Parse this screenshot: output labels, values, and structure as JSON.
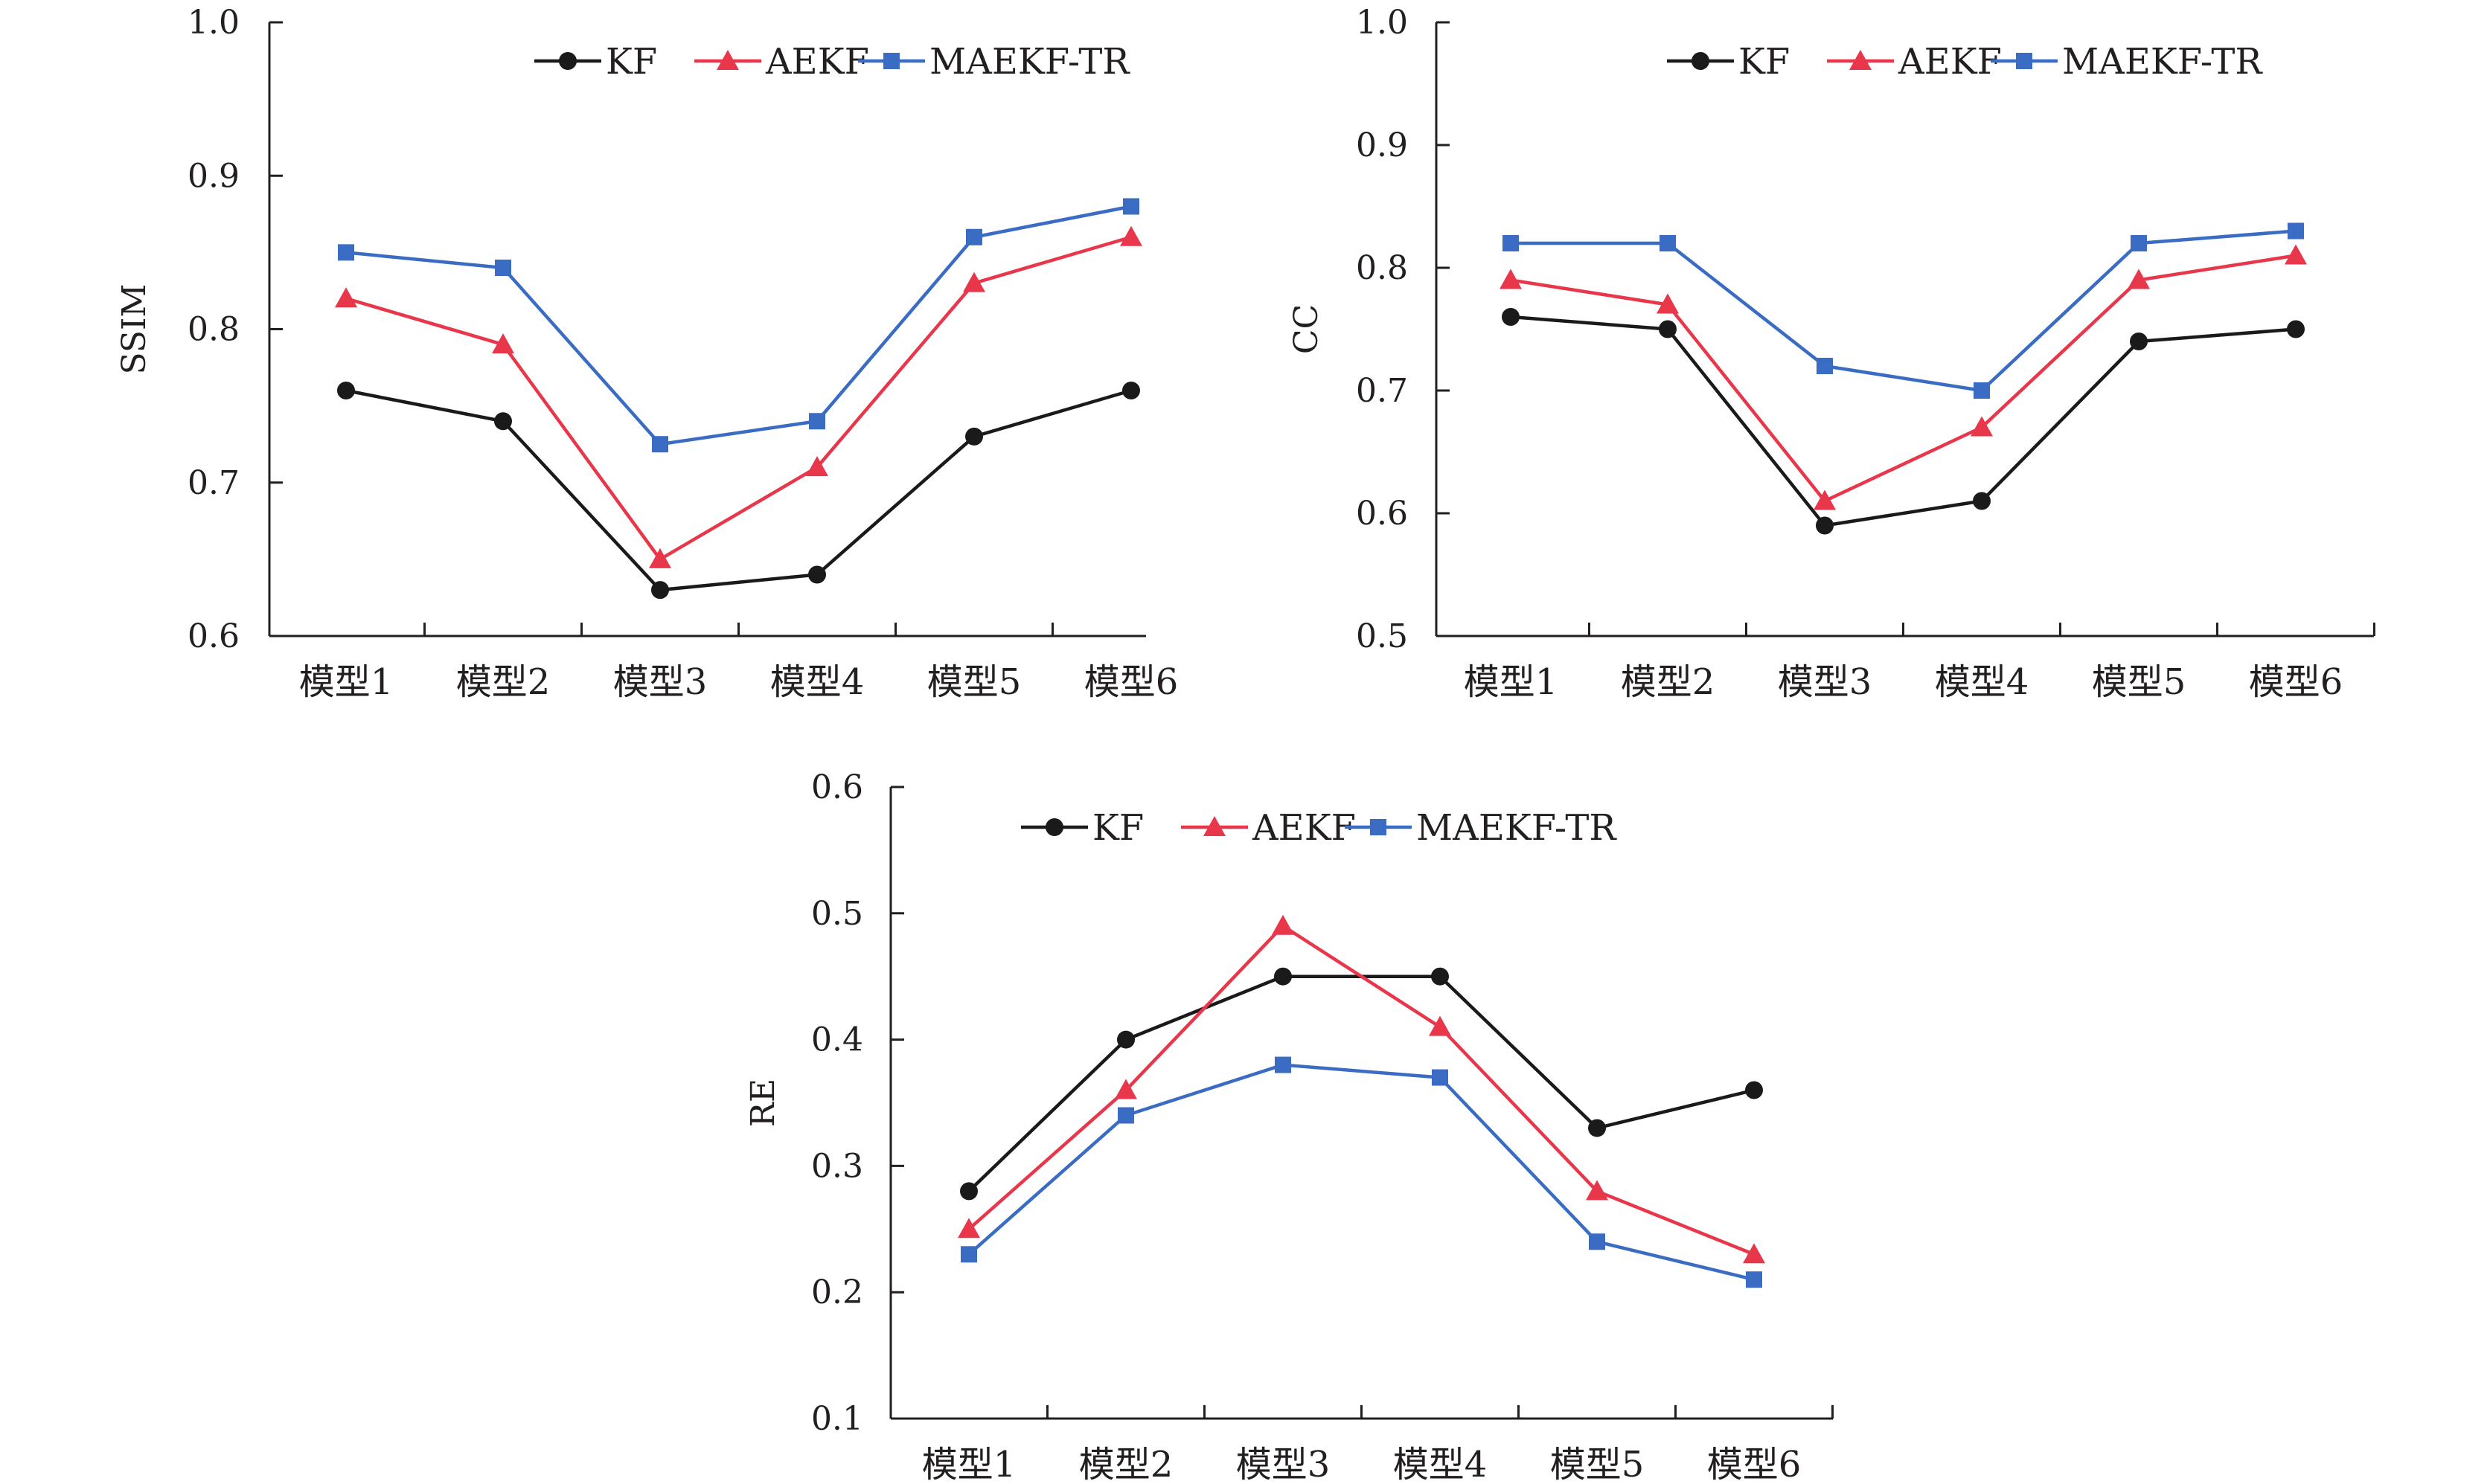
{
  "legend": [
    {
      "name": "KF",
      "color": "#1a1a1a",
      "marker": "circle"
    },
    {
      "name": "AEKF",
      "color": "#e8364a",
      "marker": "triangle"
    },
    {
      "name": "MAEKF-TR",
      "color": "#3a6cc4",
      "marker": "square"
    }
  ],
  "chart_data": [
    {
      "type": "line",
      "title": "",
      "xlabel": "",
      "ylabel": "SSIM",
      "categories": [
        "模型1",
        "模型2",
        "模型3",
        "模型4",
        "模型5",
        "模型6"
      ],
      "ylim": [
        0.6,
        1.0
      ],
      "yticks": [
        "0.6",
        "0.7",
        "0.8",
        "0.9",
        "1.0"
      ],
      "legend_position": "top-right",
      "grid": false,
      "series": [
        {
          "name": "KF",
          "values": [
            0.76,
            0.74,
            0.63,
            0.64,
            0.73,
            0.76
          ]
        },
        {
          "name": "AEKF",
          "values": [
            0.82,
            0.79,
            0.65,
            0.71,
            0.83,
            0.86
          ]
        },
        {
          "name": "MAEKF-TR",
          "values": [
            0.85,
            0.84,
            0.725,
            0.74,
            0.86,
            0.88
          ]
        }
      ]
    },
    {
      "type": "line",
      "title": "",
      "xlabel": "",
      "ylabel": "CC",
      "categories": [
        "模型1",
        "模型2",
        "模型3",
        "模型4",
        "模型5",
        "模型6"
      ],
      "ylim": [
        0.5,
        1.0
      ],
      "yticks": [
        "0.5",
        "0.6",
        "0.7",
        "0.8",
        "0.9",
        "1.0"
      ],
      "legend_position": "top-right",
      "grid": false,
      "series": [
        {
          "name": "KF",
          "values": [
            0.76,
            0.75,
            0.59,
            0.61,
            0.74,
            0.75
          ]
        },
        {
          "name": "AEKF",
          "values": [
            0.79,
            0.77,
            0.61,
            0.67,
            0.79,
            0.81
          ]
        },
        {
          "name": "MAEKF-TR",
          "values": [
            0.82,
            0.82,
            0.72,
            0.7,
            0.82,
            0.83
          ]
        }
      ]
    },
    {
      "type": "line",
      "title": "",
      "xlabel": "",
      "ylabel": "RE",
      "categories": [
        "模型1",
        "模型2",
        "模型3",
        "模型4",
        "模型5",
        "模型6"
      ],
      "ylim": [
        0.1,
        0.6
      ],
      "yticks": [
        "0.1",
        "0.2",
        "0.3",
        "0.4",
        "0.5",
        "0.6"
      ],
      "legend_position": "top-left",
      "grid": false,
      "series": [
        {
          "name": "KF",
          "values": [
            0.28,
            0.4,
            0.45,
            0.45,
            0.33,
            0.36
          ]
        },
        {
          "name": "AEKF",
          "values": [
            0.25,
            0.36,
            0.49,
            0.41,
            0.28,
            0.23
          ]
        },
        {
          "name": "MAEKF-TR",
          "values": [
            0.23,
            0.34,
            0.38,
            0.37,
            0.24,
            0.21
          ]
        }
      ]
    }
  ]
}
